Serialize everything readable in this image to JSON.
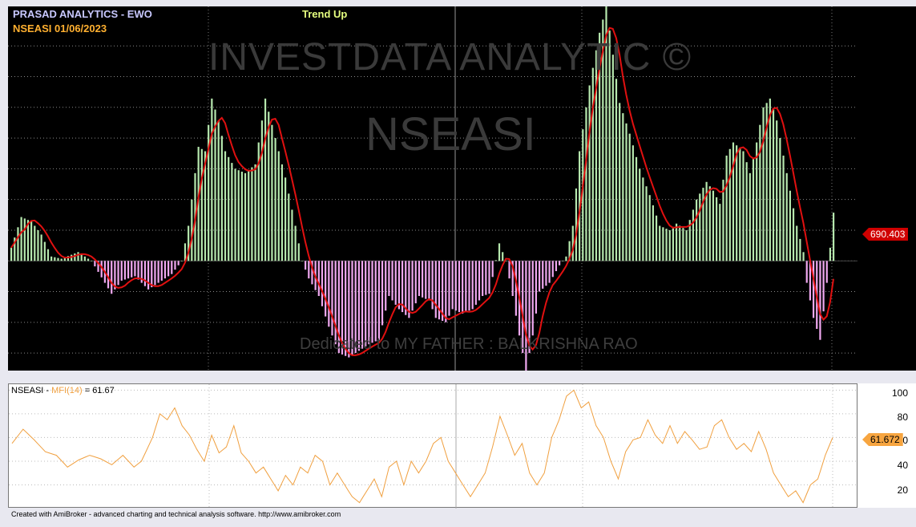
{
  "header": {
    "title": "PRASAD ANALYTICS - EWO",
    "symbol_date": "NSEASI  01/06/2023",
    "trend": "Trend Up"
  },
  "watermarks": {
    "brand": "INVESTDATA ANALYTIC ©",
    "symbol": "NSEASI",
    "dedication": "Dedicated to MY FATHER : BALKRISHNA RAO"
  },
  "price_panel": {
    "last_value_label": "690.403",
    "colors": {
      "positive": "#b6e8ae",
      "negative": "#f0a8f0",
      "signal": "#e01010",
      "background": "#000000"
    }
  },
  "mfi_panel": {
    "symbol": "NSEASI",
    "indicator": "MFI(14)",
    "value_label": "61.67",
    "last_value_tag": "61.672",
    "y_ticks": [
      "100",
      "80",
      "60",
      "40",
      "20"
    ],
    "color": "#f0a040"
  },
  "footer": "Created with AmiBroker - advanced charting and technical analysis software. http://www.amibroker.com",
  "chart_data": [
    {
      "type": "bar",
      "name": "EWO",
      "description_free": true,
      "ylim": [
        -2500,
        5800
      ],
      "signal_line": true,
      "keypoints": [
        [
          0,
          300
        ],
        [
          3,
          1000
        ],
        [
          6,
          900
        ],
        [
          9,
          600
        ],
        [
          12,
          100
        ],
        [
          15,
          50
        ],
        [
          20,
          200
        ],
        [
          24,
          0
        ],
        [
          28,
          -500
        ],
        [
          30,
          -750
        ],
        [
          33,
          -450
        ],
        [
          37,
          -350
        ],
        [
          41,
          -650
        ],
        [
          45,
          -450
        ],
        [
          48,
          -300
        ],
        [
          51,
          0
        ],
        [
          53,
          800
        ],
        [
          56,
          2600
        ],
        [
          58,
          2500
        ],
        [
          60,
          3700
        ],
        [
          62,
          3200
        ],
        [
          64,
          2500
        ],
        [
          67,
          2100
        ],
        [
          70,
          2000
        ],
        [
          73,
          2200
        ],
        [
          76,
          3700
        ],
        [
          79,
          2800
        ],
        [
          82,
          1900
        ],
        [
          85,
          800
        ],
        [
          87,
          0
        ],
        [
          89,
          -400
        ],
        [
          92,
          -800
        ],
        [
          95,
          -1500
        ],
        [
          98,
          -2100
        ],
        [
          101,
          -2200
        ],
        [
          104,
          -2050
        ],
        [
          107,
          -1900
        ],
        [
          110,
          -1800
        ],
        [
          113,
          -800
        ],
        [
          116,
          -1100
        ],
        [
          119,
          -1300
        ],
        [
          122,
          -800
        ],
        [
          125,
          -900
        ],
        [
          127,
          -1300
        ],
        [
          130,
          -1400
        ],
        [
          132,
          -1100
        ],
        [
          135,
          -1200
        ],
        [
          138,
          -1100
        ],
        [
          141,
          -800
        ],
        [
          143,
          -750
        ],
        [
          146,
          400
        ],
        [
          148,
          0
        ],
        [
          150,
          -800
        ],
        [
          152,
          -1700
        ],
        [
          154,
          -2500
        ],
        [
          156,
          -1700
        ],
        [
          158,
          -700
        ],
        [
          161,
          -500
        ],
        [
          164,
          -100
        ],
        [
          166,
          100
        ],
        [
          168,
          800
        ],
        [
          170,
          2500
        ],
        [
          173,
          4000
        ],
        [
          176,
          5200
        ],
        [
          178,
          5800
        ],
        [
          180,
          4700
        ],
        [
          182,
          3600
        ],
        [
          185,
          2900
        ],
        [
          188,
          2100
        ],
        [
          191,
          1500
        ],
        [
          194,
          800
        ],
        [
          197,
          700
        ],
        [
          199,
          850
        ],
        [
          202,
          700
        ],
        [
          205,
          1400
        ],
        [
          208,
          1800
        ],
        [
          210,
          1600
        ],
        [
          212,
          1300
        ],
        [
          214,
          2400
        ],
        [
          216,
          2700
        ],
        [
          219,
          2500
        ],
        [
          221,
          2000
        ],
        [
          223,
          2700
        ],
        [
          225,
          3500
        ],
        [
          227,
          3700
        ],
        [
          229,
          3200
        ],
        [
          232,
          2000
        ],
        [
          235,
          800
        ],
        [
          237,
          200
        ],
        [
          238,
          -500
        ],
        [
          240,
          -1300
        ],
        [
          242,
          -1800
        ],
        [
          244,
          -500
        ],
        [
          246,
          1100
        ]
      ]
    },
    {
      "type": "line",
      "name": "MFI(14)",
      "ylim": [
        0,
        105
      ],
      "keypoints": [
        [
          0,
          55
        ],
        [
          3,
          67
        ],
        [
          6,
          58
        ],
        [
          9,
          48
        ],
        [
          12,
          45
        ],
        [
          15,
          35
        ],
        [
          18,
          41
        ],
        [
          21,
          45
        ],
        [
          24,
          42
        ],
        [
          27,
          37
        ],
        [
          30,
          45
        ],
        [
          33,
          35
        ],
        [
          35,
          40
        ],
        [
          38,
          60
        ],
        [
          40,
          80
        ],
        [
          42,
          75
        ],
        [
          44,
          85
        ],
        [
          46,
          70
        ],
        [
          48,
          62
        ],
        [
          50,
          50
        ],
        [
          52,
          40
        ],
        [
          54,
          62
        ],
        [
          56,
          47
        ],
        [
          58,
          52
        ],
        [
          60,
          70
        ],
        [
          62,
          47
        ],
        [
          64,
          40
        ],
        [
          66,
          30
        ],
        [
          68,
          35
        ],
        [
          70,
          25
        ],
        [
          72,
          15
        ],
        [
          74,
          28
        ],
        [
          76,
          20
        ],
        [
          78,
          35
        ],
        [
          80,
          30
        ],
        [
          82,
          45
        ],
        [
          84,
          40
        ],
        [
          86,
          20
        ],
        [
          88,
          30
        ],
        [
          90,
          20
        ],
        [
          92,
          10
        ],
        [
          94,
          5
        ],
        [
          96,
          15
        ],
        [
          98,
          25
        ],
        [
          100,
          10
        ],
        [
          102,
          35
        ],
        [
          104,
          40
        ],
        [
          106,
          20
        ],
        [
          108,
          40
        ],
        [
          110,
          30
        ],
        [
          112,
          40
        ],
        [
          114,
          55
        ],
        [
          116,
          60
        ],
        [
          118,
          40
        ],
        [
          120,
          30
        ],
        [
          122,
          20
        ],
        [
          124,
          10
        ],
        [
          126,
          20
        ],
        [
          128,
          30
        ],
        [
          130,
          52
        ],
        [
          132,
          78
        ],
        [
          134,
          62
        ],
        [
          136,
          45
        ],
        [
          138,
          55
        ],
        [
          140,
          30
        ],
        [
          142,
          20
        ],
        [
          144,
          30
        ],
        [
          146,
          60
        ],
        [
          148,
          75
        ],
        [
          150,
          95
        ],
        [
          152,
          100
        ],
        [
          154,
          85
        ],
        [
          156,
          90
        ],
        [
          158,
          70
        ],
        [
          160,
          60
        ],
        [
          162,
          40
        ],
        [
          164,
          25
        ],
        [
          166,
          48
        ],
        [
          168,
          58
        ],
        [
          170,
          60
        ],
        [
          172,
          75
        ],
        [
          174,
          62
        ],
        [
          176,
          55
        ],
        [
          178,
          70
        ],
        [
          180,
          55
        ],
        [
          182,
          65
        ],
        [
          184,
          58
        ],
        [
          186,
          50
        ],
        [
          188,
          52
        ],
        [
          190,
          70
        ],
        [
          192,
          75
        ],
        [
          194,
          60
        ],
        [
          196,
          50
        ],
        [
          198,
          55
        ],
        [
          200,
          48
        ],
        [
          202,
          65
        ],
        [
          204,
          50
        ],
        [
          206,
          30
        ],
        [
          208,
          20
        ],
        [
          210,
          10
        ],
        [
          212,
          15
        ],
        [
          214,
          5
        ],
        [
          216,
          20
        ],
        [
          218,
          25
        ],
        [
          220,
          45
        ],
        [
          222,
          60
        ]
      ]
    }
  ]
}
